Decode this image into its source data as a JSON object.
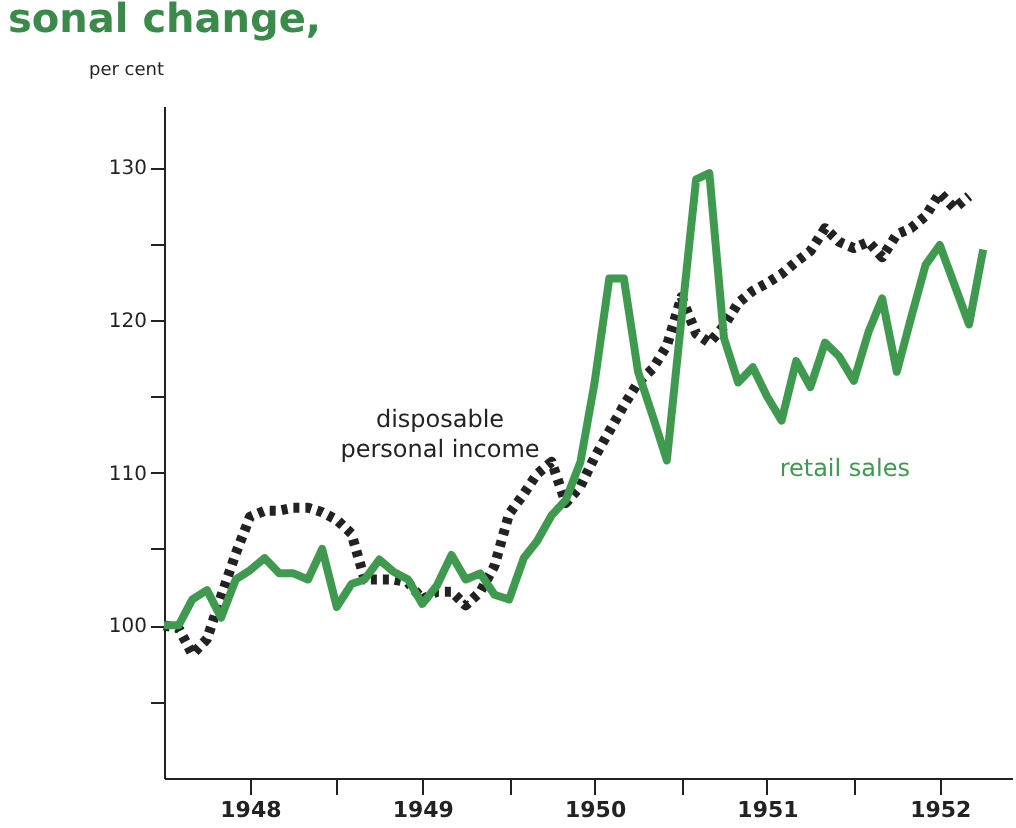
{
  "chart_data": {
    "type": "line",
    "title": "sonal change,",
    "ylabel": "per cent",
    "x": [
      "1948-01",
      "1948-02",
      "1948-03",
      "1948-04",
      "1948-05",
      "1948-06",
      "1948-07",
      "1948-08",
      "1948-09",
      "1948-10",
      "1948-11",
      "1948-12",
      "1949-01",
      "1949-02",
      "1949-03",
      "1949-04",
      "1949-05",
      "1949-06",
      "1949-07",
      "1949-08",
      "1949-09",
      "1949-10",
      "1949-11",
      "1949-12",
      "1950-01",
      "1950-02",
      "1950-03",
      "1950-04",
      "1950-05",
      "1950-06",
      "1950-07",
      "1950-08",
      "1950-09",
      "1950-10",
      "1950-11",
      "1950-12",
      "1951-01",
      "1951-02",
      "1951-03",
      "1951-04",
      "1951-05",
      "1951-06",
      "1951-07",
      "1951-08",
      "1951-09",
      "1951-10",
      "1951-11",
      "1951-12",
      "1952-01",
      "1952-02",
      "1952-03",
      "1952-04",
      "1952-05",
      "1952-06",
      "1952-07",
      "1952-08",
      "1952-09",
      "1952-10"
    ],
    "series": [
      {
        "name": "disposable personal income",
        "color": "#222222",
        "line_style": "dotted",
        "values": [
          100,
          99.8,
          98.1,
          99.1,
          101.9,
          104.7,
          107.1,
          107.5,
          107.5,
          107.7,
          107.7,
          107.4,
          106.9,
          106,
          103,
          103,
          103,
          102.8,
          101.7,
          102.2,
          102.2,
          101.3,
          102.2,
          103.9,
          107.3,
          108.6,
          109.9,
          110.7,
          108,
          109.1,
          111,
          112.7,
          114.4,
          115.9,
          116.8,
          118.3,
          121.5,
          119.1,
          118.5,
          119.6,
          121.1,
          121.9,
          122.4,
          123,
          123.8,
          124.5,
          126,
          125.1,
          124.7,
          125.1,
          124.1,
          125.6,
          126,
          126.8,
          128.3,
          127.3,
          128.1,
          null
        ]
      },
      {
        "name": "retail sales",
        "color": "#3f9a4f",
        "line_style": "solid",
        "values": [
          100,
          100,
          101.7,
          102.3,
          100.5,
          103,
          103.6,
          104.4,
          103.4,
          103.4,
          103,
          105,
          101.2,
          102.7,
          103,
          104.3,
          103.5,
          103,
          101.4,
          102.6,
          104.6,
          103,
          103.4,
          102,
          101.7,
          104.4,
          105.5,
          107.2,
          108.2,
          110.7,
          115.9,
          122.7,
          122.7,
          116.6,
          113.7,
          110.8,
          120.1,
          129.2,
          129.6,
          118.8,
          115.9,
          116.9,
          115,
          113.4,
          117.3,
          115.6,
          118.5,
          117.6,
          116,
          119.2,
          121.4,
          116.6,
          120.1,
          123.6,
          124.9,
          122.3,
          119.7,
          124.6
        ]
      }
    ],
    "xlim": [
      "1948-01",
      "1952-12"
    ],
    "xticks": [
      {
        "value": "1948-07",
        "label": "1948"
      },
      {
        "value": "1949-01",
        "label": null
      },
      {
        "value": "1949-07",
        "label": "1949"
      },
      {
        "value": "1950-01",
        "label": null
      },
      {
        "value": "1950-07",
        "label": "1950"
      },
      {
        "value": "1951-01",
        "label": null
      },
      {
        "value": "1951-07",
        "label": "1951"
      },
      {
        "value": "1952-01",
        "label": null
      },
      {
        "value": "1952-07",
        "label": "1952"
      }
    ],
    "ylim": [
      90,
      134
    ],
    "yticks": [
      {
        "value": 95,
        "label": null
      },
      100,
      {
        "value": 105,
        "label": null
      },
      110,
      {
        "value": 115,
        "label": null
      },
      120,
      {
        "value": 125,
        "label": null
      },
      130
    ],
    "grid": false,
    "marker": "none"
  }
}
